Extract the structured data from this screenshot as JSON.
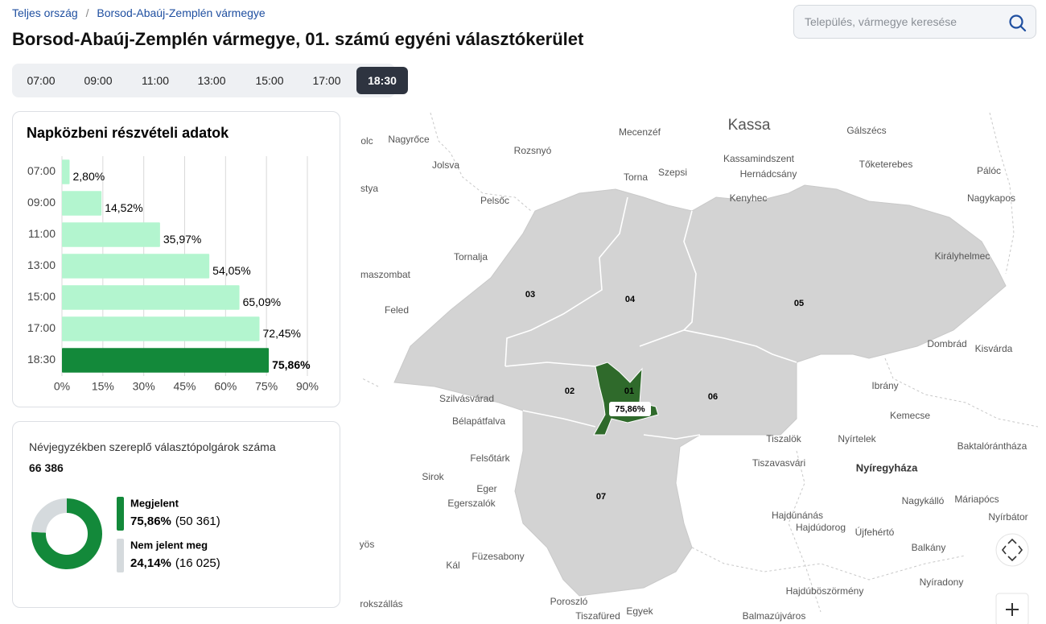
{
  "breadcrumb": {
    "items": [
      "Teljes ország",
      "Borsod-Abaúj-Zemplén vármegye"
    ],
    "separator": "/"
  },
  "title": "Borsod-Abaúj-Zemplén vármegye, 01. számú egyéni választókerület",
  "search": {
    "placeholder": "Település, vármegye keresése"
  },
  "time_tabs": {
    "items": [
      "07:00",
      "09:00",
      "11:00",
      "13:00",
      "15:00",
      "17:00",
      "18:30"
    ],
    "active": 6
  },
  "chart_data": [
    {
      "type": "bar",
      "orientation": "horizontal",
      "title": "Napközbeni részvételi adatok",
      "categories": [
        "07:00",
        "09:00",
        "11:00",
        "13:00",
        "15:00",
        "17:00",
        "18:30"
      ],
      "values": [
        2.8,
        14.52,
        35.97,
        54.05,
        65.09,
        72.45,
        75.86
      ],
      "value_labels": [
        "2,80%",
        "14,52%",
        "35,97%",
        "54,05%",
        "65,09%",
        "72,45%",
        "75,86%"
      ],
      "colors": [
        "#b3f5cf",
        "#b3f5cf",
        "#b3f5cf",
        "#b3f5cf",
        "#b3f5cf",
        "#b3f5cf",
        "#13893a"
      ],
      "xlim": [
        0,
        90
      ],
      "xticks": [
        {
          "value": 0,
          "label": "0%"
        },
        {
          "value": 15,
          "label": "15%"
        },
        {
          "value": 30,
          "label": "30%"
        },
        {
          "value": 45,
          "label": "45%"
        },
        {
          "value": 60,
          "label": "60%"
        },
        {
          "value": 75,
          "label": "75%"
        },
        {
          "value": 90,
          "label": "90%"
        }
      ],
      "grid": true
    },
    {
      "type": "pie",
      "donut": true,
      "title": "Névjegyzékben szereplő választópolgárok száma",
      "total_label": "66 386",
      "categories": [
        "Megjelent",
        "Nem jelent meg"
      ],
      "values": [
        75.86,
        24.14
      ],
      "value_labels": [
        "75,86%",
        "24,14%"
      ],
      "count_labels": [
        "(50 361)",
        "(16 025)"
      ],
      "colors": [
        "#13893a",
        "#d5dadd"
      ]
    }
  ],
  "map": {
    "city": "Kassa",
    "districts": [
      "01",
      "02",
      "03",
      "04",
      "05",
      "06",
      "07"
    ],
    "highlight_label": "75,86%",
    "places": [
      "olc",
      "Nagyrőce",
      "Mecenzéf",
      "Gálszécs",
      "Rozsnyó",
      "Kassamindszent",
      "Jolsva",
      "Torna",
      "Szepsi",
      "Hernádcsány",
      "Tőketerebes",
      "Pálóc",
      "stya",
      "Pelsőc",
      "Kenyhec",
      "Nagykapos",
      "Tornalja",
      "Királyhelmec",
      "maszombat",
      "Feled",
      "Dombrád",
      "Kisvárda",
      "Ibrány",
      "Szilvásvárad",
      "Bélapátfalva",
      "Kemecse",
      "Tiszalök",
      "Nyírtelek",
      "Baktalórántháza",
      "Felsőtárk",
      "Tiszavasvári",
      "Nyíregyháza",
      "Sirok",
      "Eger",
      "Egerszalók",
      "Nagykálló",
      "Máriapócs",
      "Hajdúnánás",
      "Nyírbátor",
      "Hajdúdorog",
      "Újfehértó",
      "yös",
      "Balkány",
      "Füzesabony",
      "Kál",
      "Nyíradony",
      "Hajdúböszörmény",
      "rokszállás",
      "Poroszló",
      "Egyek",
      "Tiszafüred",
      "Balmazújváros"
    ]
  }
}
